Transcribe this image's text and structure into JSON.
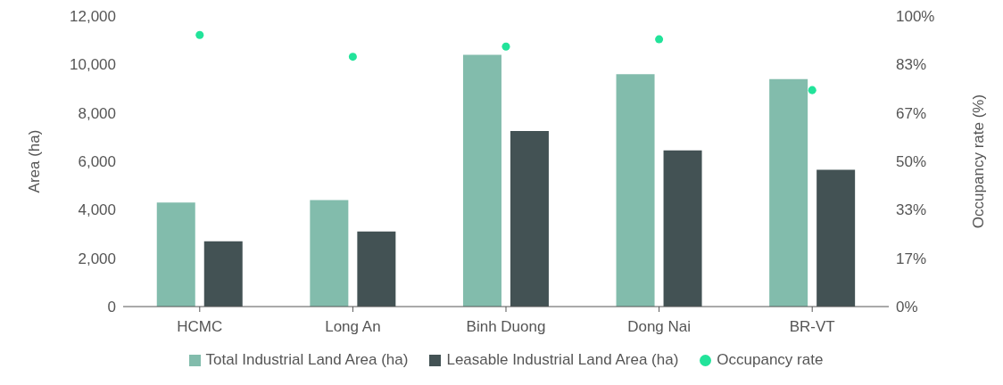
{
  "chart_data": {
    "type": "bar",
    "categories": [
      "HCMC",
      "Long An",
      "Binh Duong",
      "Dong Nai",
      "BR-VT"
    ],
    "ylabel": "Area (ha)",
    "y2label": "Occupancy rate (%)",
    "series": [
      {
        "name": "Total Industrial Land Area (ha)",
        "color": "#82bcac",
        "values": [
          4300,
          4400,
          10400,
          9600,
          9400
        ]
      },
      {
        "name": "Leasable Industrial Land Area (ha)",
        "color": "#435254",
        "values": [
          2700,
          3100,
          7250,
          6450,
          5650
        ]
      },
      {
        "name": "Occupancy rate",
        "type": "scatter",
        "axis": "y2",
        "color": "#22e39a",
        "values": [
          93.5,
          86,
          89.5,
          92,
          74.5
        ]
      }
    ],
    "ylim": [
      0,
      12000
    ],
    "yticks": [
      0,
      {
        "value": 2000,
        "label": "2,000"
      },
      {
        "value": 4000,
        "label": "4,000"
      },
      {
        "value": 6000,
        "label": "6,000"
      },
      {
        "value": 8000,
        "label": "8,000"
      },
      {
        "value": 10000,
        "label": "10,000"
      },
      {
        "value": 12000,
        "label": "12,000"
      }
    ],
    "y2lim": [
      0,
      100
    ],
    "y2ticks": [
      {
        "value": 0,
        "label": "0%"
      },
      {
        "value": 16.667,
        "label": "17%"
      },
      {
        "value": 33.333,
        "label": "33%"
      },
      {
        "value": 50,
        "label": "50%"
      },
      {
        "value": 66.667,
        "label": "67%"
      },
      {
        "value": 83.333,
        "label": "83%"
      },
      {
        "value": 100,
        "label": "100%"
      }
    ],
    "legend": "bottom",
    "grid": false,
    "marker": "circle"
  }
}
